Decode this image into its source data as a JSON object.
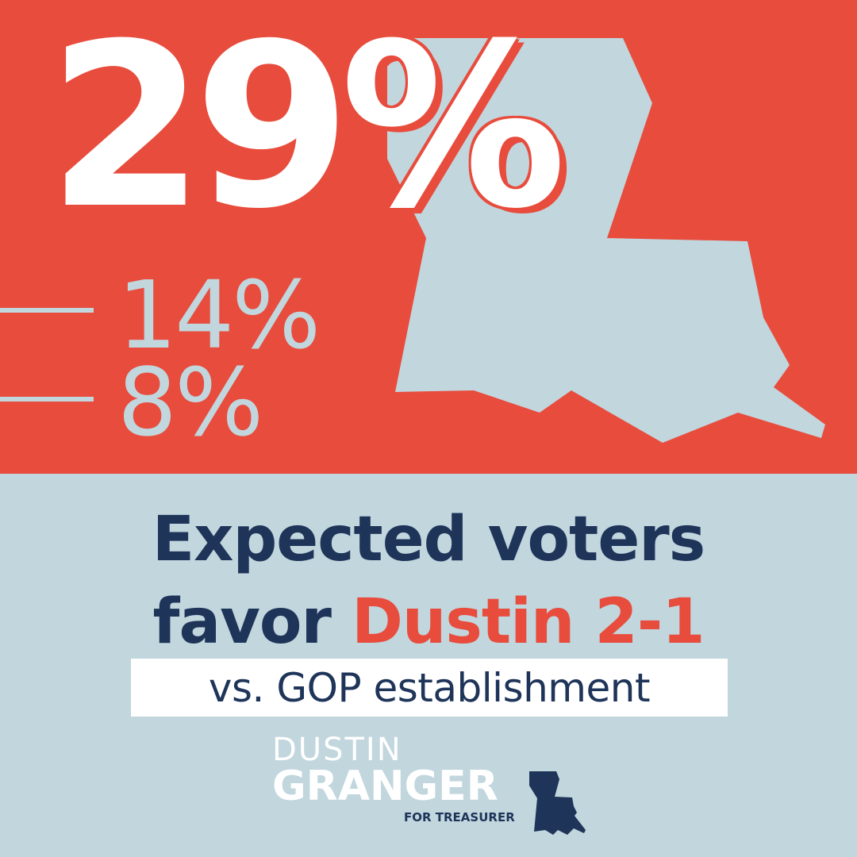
{
  "hero": {
    "main_stat": "29%",
    "stats": [
      "14%",
      "8%"
    ]
  },
  "headline": {
    "line1": "Expected voters",
    "line2_prefix": "favor ",
    "line2_accent": "Dustin 2-1"
  },
  "subheadline": "vs. GOP establishment",
  "logo": {
    "first_name": "DUSTIN",
    "last_name": "GRANGER",
    "tagline": "FOR TREASURER",
    "icon": "louisiana-state-icon"
  },
  "colors": {
    "red": "#e84c3d",
    "light_blue": "#c1d6dd",
    "navy": "#1e3459",
    "white": "#ffffff"
  }
}
